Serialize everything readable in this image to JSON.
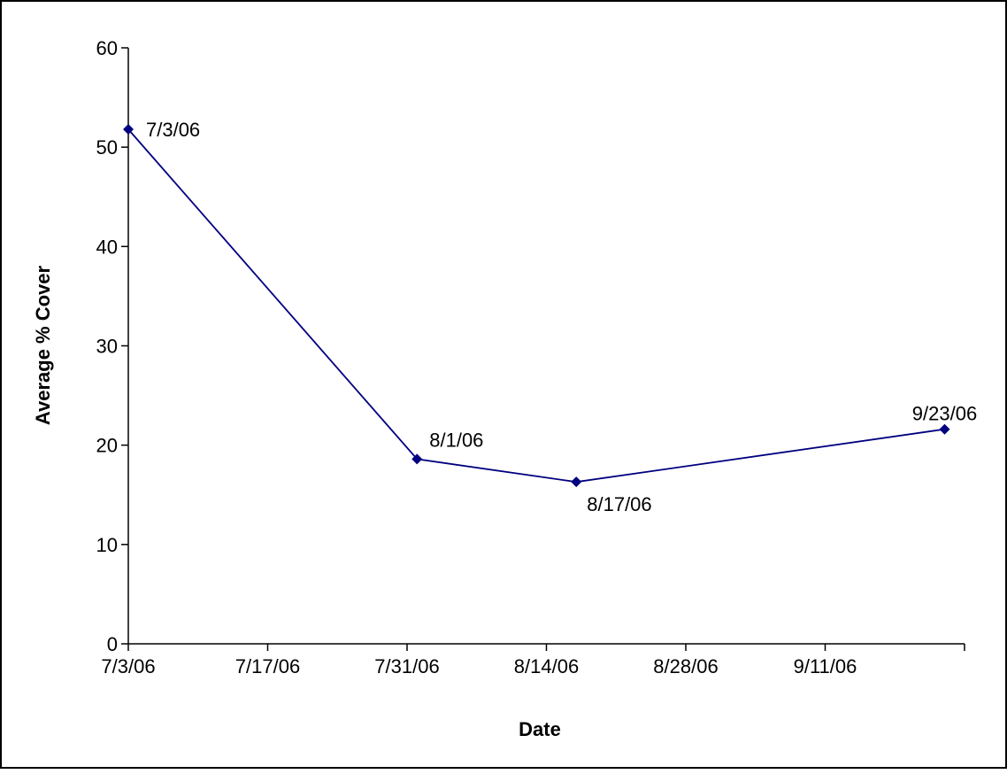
{
  "chart_data": {
    "type": "line",
    "title": "",
    "xlabel": "Date",
    "ylabel": "Average % Cover",
    "x_axis": {
      "type": "date",
      "min": "2006-07-03",
      "max": "2006-09-25",
      "tick_dates": [
        "2006-07-03",
        "2006-07-17",
        "2006-07-31",
        "2006-08-14",
        "2006-08-28",
        "2006-09-11",
        "2006-09-25"
      ],
      "tick_labels": [
        "7/3/06",
        "7/17/06",
        "7/31/06",
        "8/14/06",
        "8/28/06",
        "9/11/06",
        ""
      ]
    },
    "y_axis": {
      "min": 0,
      "max": 60,
      "ticks": [
        0,
        10,
        20,
        30,
        40,
        50,
        60
      ],
      "tick_labels": [
        "0",
        "10",
        "20",
        "30",
        "40",
        "50",
        "60"
      ]
    },
    "grid": false,
    "legend": "none",
    "series": [
      {
        "color": "#000080",
        "marker": "diamond",
        "points": [
          {
            "x": "2006-07-03",
            "y": 51.8,
            "label": "7/3/06",
            "label_pos": "right"
          },
          {
            "x": "2006-08-01",
            "y": 18.6,
            "label": "8/1/06",
            "label_pos": "above-right"
          },
          {
            "x": "2006-08-17",
            "y": 16.3,
            "label": "8/17/06",
            "label_pos": "below-right"
          },
          {
            "x": "2006-09-23",
            "y": 21.6,
            "label": "9/23/06",
            "label_pos": "above"
          }
        ]
      }
    ]
  }
}
